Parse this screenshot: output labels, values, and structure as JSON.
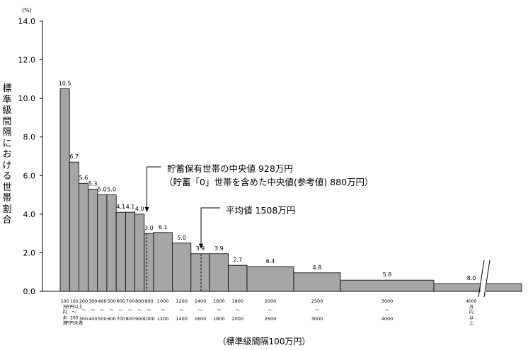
{
  "chart_data": {
    "type": "bar",
    "unit_label": "(%)",
    "ylabel": "標準級間隔における世帯割合",
    "xlabel": "（標準級間隔100万円）",
    "ylim": [
      0,
      14
    ],
    "yticks": [
      "0.0",
      "2.0",
      "4.0",
      "6.0",
      "8.0",
      "10.0",
      "12.0",
      "14.0"
    ],
    "grid": false,
    "bins": [
      {
        "from": 0,
        "to": 100,
        "value": 10.5,
        "label": "10.5",
        "tick": [
          "100",
          "万",
          "円",
          "未",
          "満"
        ]
      },
      {
        "from": 100,
        "to": 200,
        "value": 6.7,
        "label": "6.7",
        "tick": [
          "100",
          "万円以上",
          "〜",
          "200",
          "万円未満"
        ]
      },
      {
        "from": 200,
        "to": 300,
        "value": 5.6,
        "label": "5.6",
        "tick": [
          "200",
          "〜",
          "300"
        ]
      },
      {
        "from": 300,
        "to": 400,
        "value": 5.3,
        "label": "5.3",
        "tick": [
          "300",
          "〜",
          "400"
        ]
      },
      {
        "from": 400,
        "to": 500,
        "value": 5.0,
        "label": "5.0",
        "tick": [
          "400",
          "〜",
          "500"
        ]
      },
      {
        "from": 500,
        "to": 600,
        "value": 5.0,
        "label": "5.0",
        "tick": [
          "500",
          "〜",
          "600"
        ]
      },
      {
        "from": 600,
        "to": 700,
        "value": 4.1,
        "label": "4.1",
        "tick": [
          "600",
          "〜",
          "700"
        ]
      },
      {
        "from": 700,
        "to": 800,
        "value": 4.1,
        "label": "4.1",
        "tick": [
          "700",
          "〜",
          "800"
        ]
      },
      {
        "from": 800,
        "to": 900,
        "value": 4.0,
        "label": "4.0",
        "tick": [
          "800",
          "〜",
          "900"
        ]
      },
      {
        "from": 900,
        "to": 1000,
        "value": 3.0,
        "label": "3.0",
        "tick": [
          "900",
          "〜",
          "1000"
        ]
      },
      {
        "from": 1000,
        "to": 1200,
        "value": 3.05,
        "label": "6.1",
        "tick": [
          "1000",
          "〜",
          "1200"
        ]
      },
      {
        "from": 1200,
        "to": 1400,
        "value": 2.5,
        "label": "5.0",
        "tick": [
          "1200",
          "〜",
          "1400"
        ]
      },
      {
        "from": 1400,
        "to": 1600,
        "value": 1.95,
        "label": "3.9",
        "tick": [
          "1400",
          "〜",
          "1600"
        ]
      },
      {
        "from": 1600,
        "to": 1800,
        "value": 1.95,
        "label": "3.9",
        "tick": [
          "1600",
          "〜",
          "1800"
        ]
      },
      {
        "from": 1800,
        "to": 2000,
        "value": 1.35,
        "label": "2.7",
        "tick": [
          "1800",
          "〜",
          "2000"
        ]
      },
      {
        "from": 2000,
        "to": 2500,
        "value": 1.28,
        "label": "6.4",
        "tick": [
          "2000",
          "〜",
          "2500"
        ]
      },
      {
        "from": 2500,
        "to": 3000,
        "value": 0.96,
        "label": "4.8",
        "tick": [
          "2500",
          "〜",
          "3000"
        ]
      },
      {
        "from": 3000,
        "to": 4000,
        "value": 0.58,
        "label": "5.8",
        "tick": [
          "3000",
          "〜",
          "4000"
        ]
      },
      {
        "from": 4000,
        "to": 5000,
        "value": 0.4,
        "label": "8.0",
        "tick": [
          "4000",
          "万",
          "円",
          "以",
          "上"
        ]
      }
    ],
    "annotations": {
      "median_line1": "貯蓄保有世帯の中央値 928万円",
      "median_line2": "（貯蓄「0」世帯を含めた中央値(参考値) 880万円）",
      "median_value": 928,
      "mean": "平均値 1508万円",
      "mean_value": 1508
    },
    "colors": {
      "bar": "#a6a6a6",
      "edge": "#000000"
    }
  }
}
